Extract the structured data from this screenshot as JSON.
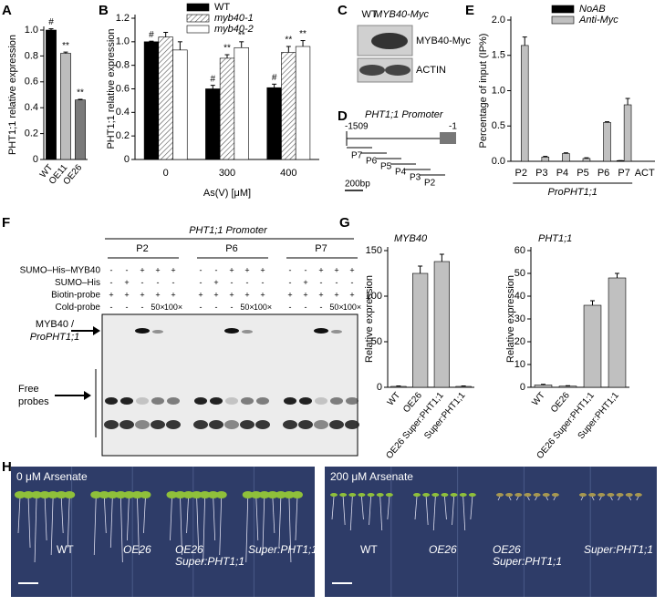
{
  "chart_data": [
    {
      "type": "bar",
      "panel_label": "A",
      "y_label": "PHT1;1 relative expression",
      "categories": [
        "WT",
        "OE11",
        "OE26"
      ],
      "series": [
        {
          "values": [
            1.0,
            0.82,
            0.46
          ],
          "errors": [
            0.01,
            0.01,
            0.005
          ],
          "colors": [
            "#000000",
            "#bdbdbd",
            "#7a7a7a"
          ],
          "annotations": [
            "#",
            "**",
            "**"
          ]
        }
      ],
      "ylim": [
        0,
        1
      ],
      "yticks": [
        0,
        0.2,
        0.4,
        0.6,
        0.8,
        {
          "value": 1,
          "label": "1.0"
        }
      ]
    },
    {
      "type": "bar",
      "panel_label": "B",
      "y_label": "PHT1;1 relative expression",
      "x_label": "As(V) [μM]",
      "categories": [
        "0",
        "300",
        "400"
      ],
      "series": [
        {
          "name": "WT",
          "color": "#000000",
          "values": [
            1.0,
            0.6,
            0.61
          ],
          "errors": [
            0.005,
            0.03,
            0.03
          ],
          "annotations": [
            "#",
            "#",
            "#"
          ]
        },
        {
          "name": "myb40-1",
          "color": "#ffffff",
          "pattern": "hatch",
          "values": [
            1.04,
            0.86,
            0.91
          ],
          "errors": [
            0.04,
            0.03,
            0.05
          ],
          "annotations": [
            null,
            "**",
            "**"
          ]
        },
        {
          "name": "myb40-2",
          "color": "#ffffff",
          "values": [
            0.93,
            0.95,
            0.96
          ],
          "errors": [
            0.07,
            0.05,
            0.05
          ],
          "annotations": [
            null,
            "**",
            "**"
          ]
        }
      ],
      "ylim": [
        0,
        1.2
      ],
      "yticks": [
        0,
        0.2,
        0.4,
        0.6,
        0.8,
        {
          "value": 1,
          "label": "1.0"
        },
        1.2
      ],
      "legend": "top-right"
    },
    {
      "type": "bar",
      "panel_label": "E",
      "y_label": "Percentage of input (IP%)",
      "group_label": "ProPHT1;1",
      "categories": [
        "P2",
        "P3",
        "P4",
        "P5",
        "P6",
        "P7",
        "ACT"
      ],
      "series": [
        {
          "name": "NoAB",
          "color": "#000000",
          "values": [
            0,
            0,
            0,
            0,
            0,
            0.01,
            0
          ],
          "errors": [
            0,
            0,
            0,
            0,
            0,
            0,
            0
          ]
        },
        {
          "name": "Anti-Myc",
          "color": "#c0c0c0",
          "values": [
            1.64,
            0.06,
            0.11,
            0.04,
            0.55,
            0.8,
            0
          ],
          "errors": [
            0.12,
            0.01,
            0.01,
            0.01,
            0.01,
            0.09,
            0
          ]
        }
      ],
      "ylim": [
        0,
        2
      ],
      "yticks": [
        {
          "value": 0,
          "label": "0.0"
        },
        0.5,
        {
          "value": 1,
          "label": "1.0"
        },
        1.5,
        {
          "value": 2,
          "label": "2.0"
        }
      ],
      "legend": "top-right"
    },
    {
      "type": "bar",
      "panel_label": "G",
      "title": "MYB40",
      "y_label": "Relative expression",
      "categories": [
        "WT",
        "OE26",
        "OE26 Super:PHT1;1",
        "Super:PHT1;1"
      ],
      "series": [
        {
          "values": [
            1,
            125,
            138,
            1
          ],
          "errors": [
            0.5,
            8,
            8,
            0.5
          ],
          "colors": [
            "#c0c0c0",
            "#c0c0c0",
            "#c0c0c0",
            "#c0c0c0"
          ]
        }
      ],
      "ylim": [
        0,
        150
      ],
      "yticks": [
        0,
        50,
        100,
        150
      ]
    },
    {
      "type": "bar",
      "title": "PHT1;1",
      "y_label": "Relative expression",
      "categories": [
        "WT",
        "OE26",
        "OE26 Super:PHT1;1",
        "Super:PHT1;1"
      ],
      "series": [
        {
          "values": [
            1,
            0.5,
            36,
            48
          ],
          "errors": [
            0.3,
            0.2,
            2,
            2
          ],
          "colors": [
            "#c0c0c0",
            "#c0c0c0",
            "#c0c0c0",
            "#c0c0c0"
          ]
        }
      ],
      "ylim": [
        0,
        60
      ],
      "yticks": [
        0,
        10,
        20,
        30,
        40,
        50,
        60
      ]
    }
  ],
  "blot": {
    "panel_label": "C",
    "lanes": [
      "WT",
      "MYB40-Myc"
    ],
    "rows": [
      "MYB40-Myc",
      "ACTIN"
    ]
  },
  "promoter_diagram": {
    "panel_label": "D",
    "title": "PHT1;1 Promoter",
    "start": "-1509",
    "end": "-1",
    "fragments": [
      "P7",
      "P6",
      "P5",
      "P4",
      "P3",
      "P2"
    ],
    "scale": "200bp"
  },
  "emsa": {
    "panel_label": "F",
    "title": "PHT1;1 Promoter",
    "probes": [
      "P2",
      "P6",
      "P7"
    ],
    "row_labels": [
      "SUMO–His–MYB40",
      "SUMO–His",
      "Biotin-probe",
      "Cold-probe"
    ],
    "rows": [
      [
        "-",
        "-",
        "+",
        "+",
        "+",
        "-",
        "-",
        "+",
        "+",
        "+",
        "-",
        "-",
        "+",
        "+",
        "+"
      ],
      [
        "-",
        "+",
        "-",
        "-",
        "-",
        "-",
        "+",
        "-",
        "-",
        "-",
        "-",
        "+",
        "-",
        "-",
        "-"
      ],
      [
        "+",
        "+",
        "+",
        "+",
        "+",
        "+",
        "+",
        "+",
        "+",
        "+",
        "+",
        "+",
        "+",
        "+",
        "+"
      ],
      [
        "-",
        "-",
        "-",
        "50×",
        "100×",
        "-",
        "-",
        "-",
        "50×",
        "100×",
        "-",
        "-",
        "-",
        "50×",
        "100×"
      ]
    ],
    "band_label": [
      "MYB40 /",
      "ProPHT1;1"
    ],
    "free_label": [
      "Free",
      "probes"
    ]
  },
  "seedlings": {
    "panel_label": "H",
    "conditions": [
      "0 μM Arsenate",
      "200 μM Arsenate"
    ],
    "genotypes": [
      [
        "WT"
      ],
      [
        "OE26"
      ],
      [
        "OE26",
        "Super:PHT1;1"
      ],
      [
        "Super:PHT1;1"
      ]
    ]
  }
}
